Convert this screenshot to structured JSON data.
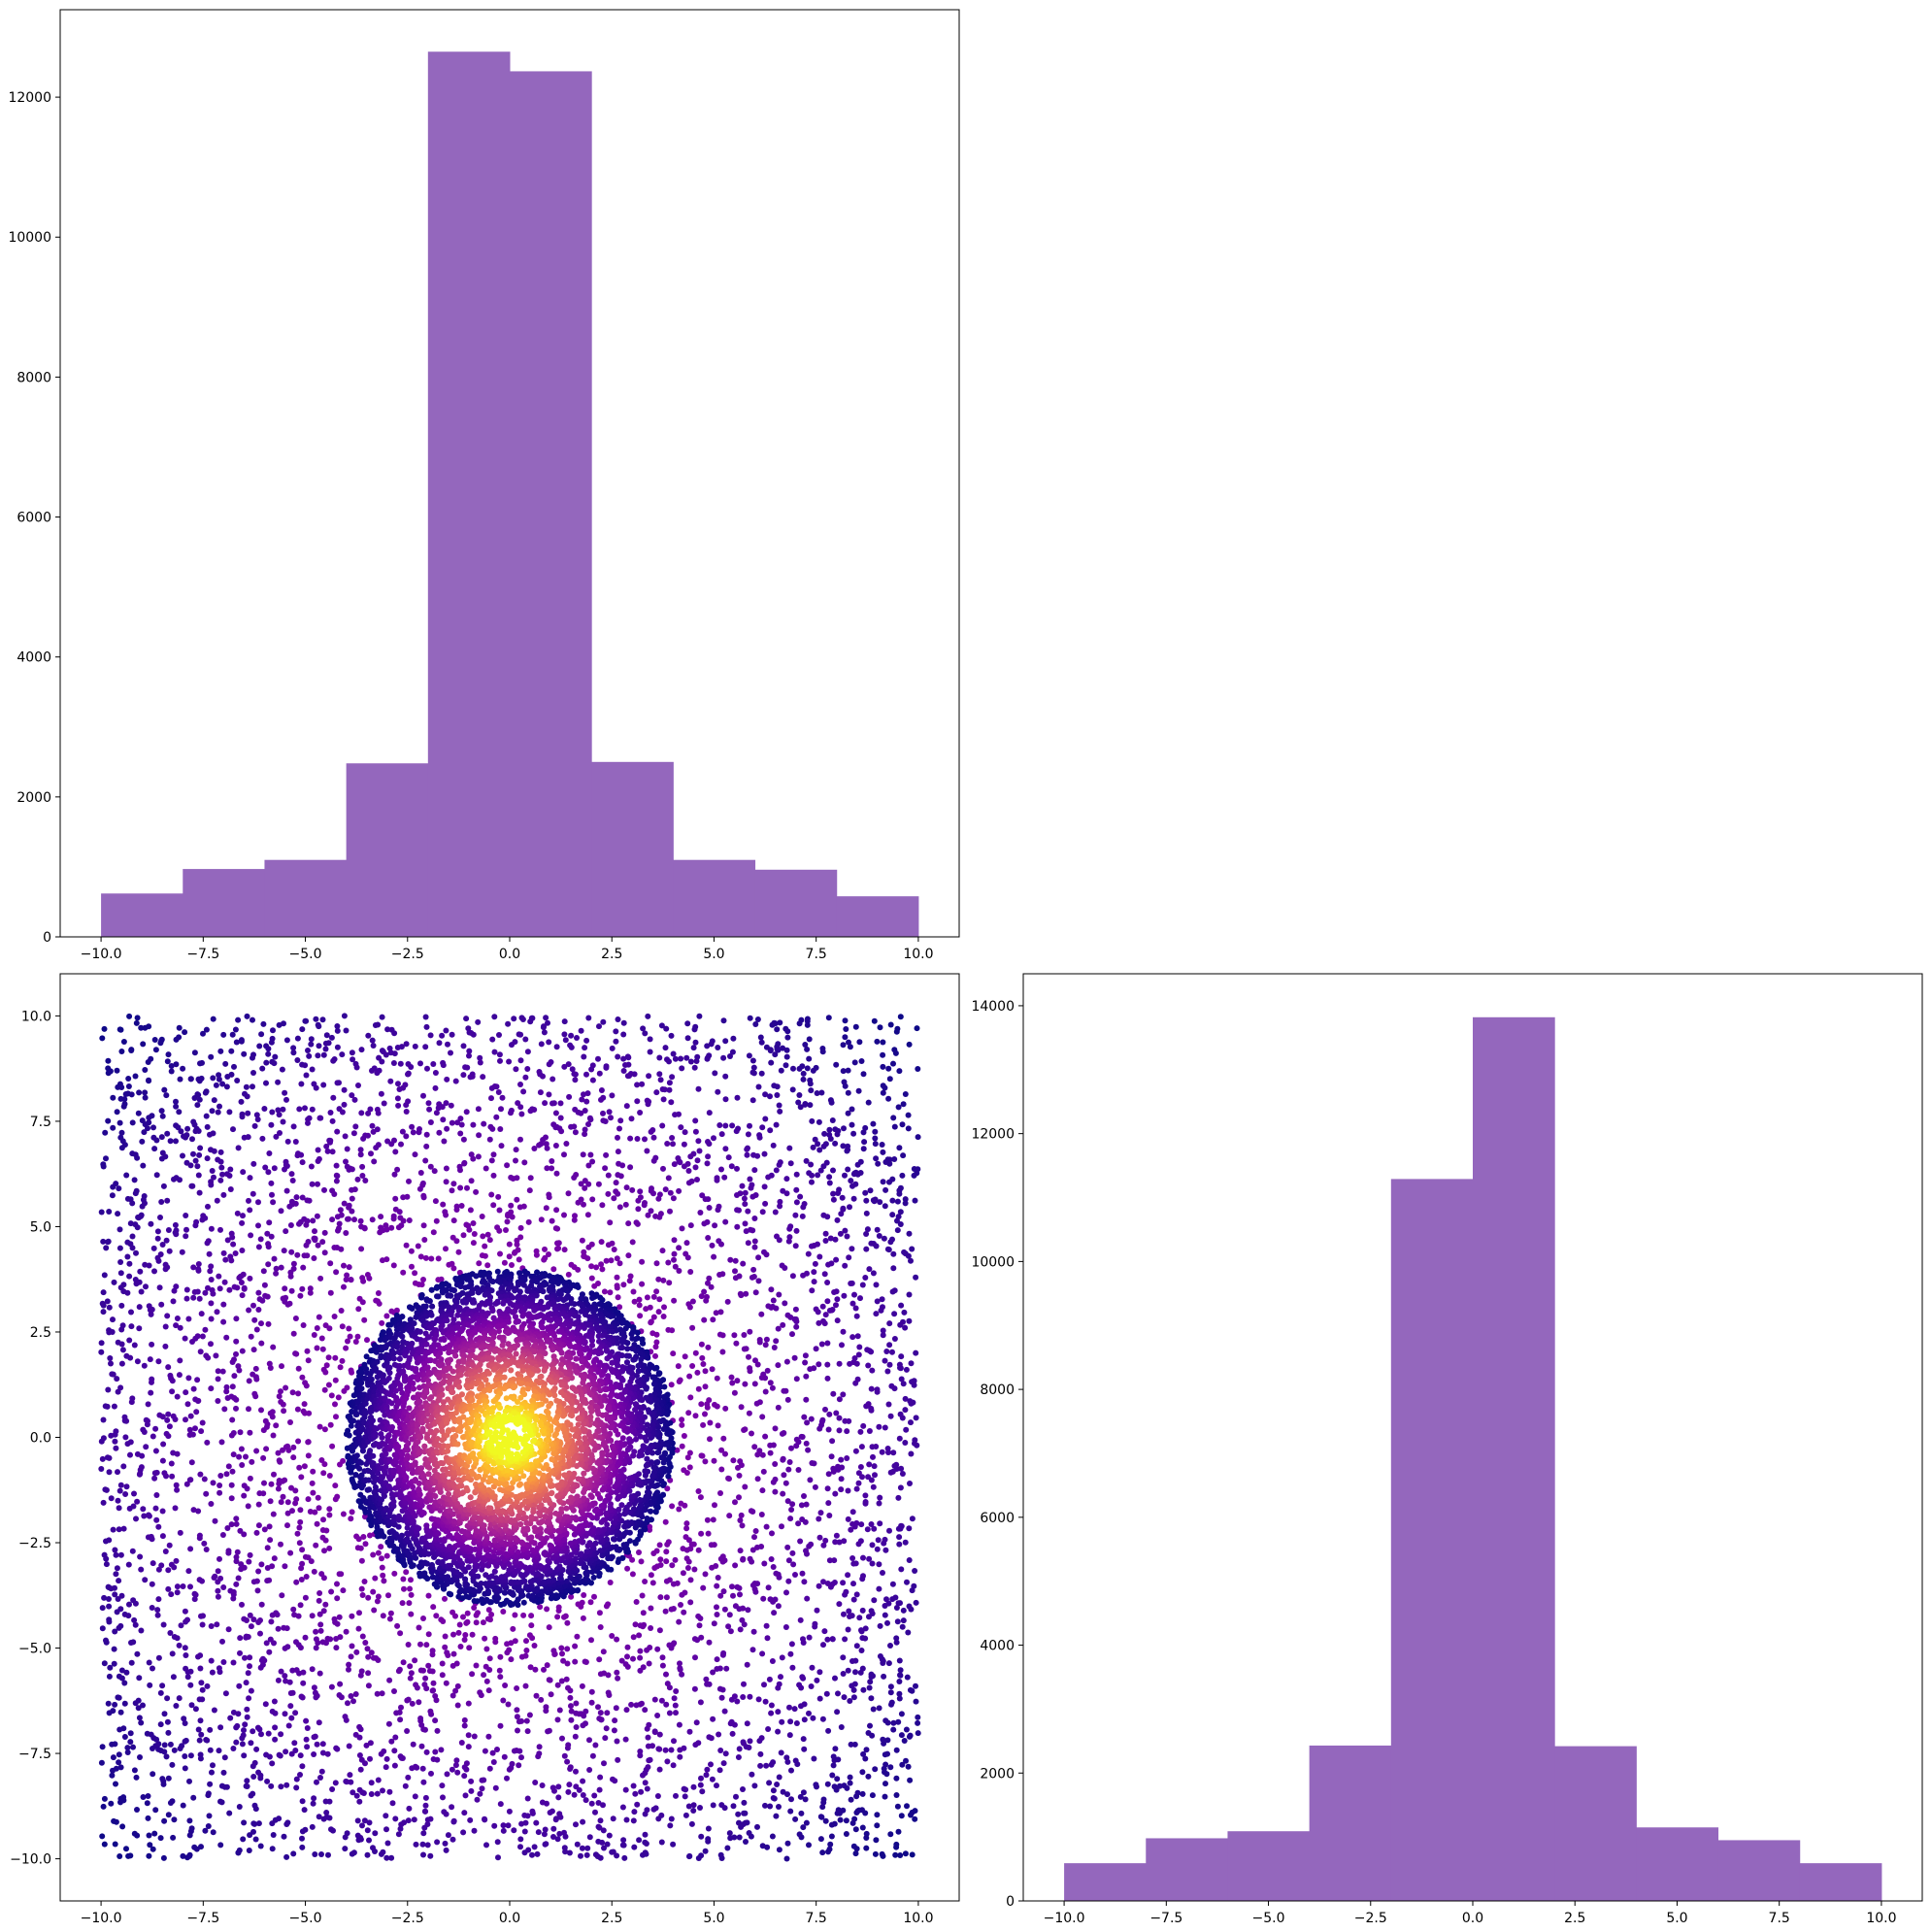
{
  "colors": {
    "bar": "#9467bd",
    "scatter_colormap": "plasma",
    "axes": "#000000",
    "background": "#ffffff"
  },
  "chart_data": [
    {
      "id": "hist-x",
      "type": "bar",
      "bin_edges": [
        -10,
        -8,
        -6,
        -4,
        -2,
        0,
        2,
        4,
        6,
        8,
        10
      ],
      "values": [
        620,
        970,
        1100,
        2480,
        12650,
        12370,
        2500,
        1100,
        960,
        580
      ],
      "xlim": [
        -11,
        11
      ],
      "ylim": [
        0,
        13250
      ],
      "xticks": [
        -10,
        -7.5,
        -5,
        -2.5,
        0,
        2.5,
        5,
        7.5,
        10
      ],
      "xtick_labels": [
        "−10.0",
        "−7.5",
        "−5.0",
        "−2.5",
        "0.0",
        "2.5",
        "5.0",
        "7.5",
        "10.0"
      ],
      "yticks": [
        0,
        2000,
        4000,
        6000,
        8000,
        10000,
        12000
      ],
      "ytick_labels": [
        "0",
        "2000",
        "4000",
        "6000",
        "8000",
        "10000",
        "12000"
      ],
      "title": "",
      "xlabel": "",
      "ylabel": "",
      "grid": false
    },
    {
      "id": "scatter-xy",
      "type": "scatter",
      "description_of_distribution": "dense isotropic cluster centred at (0, 0) with radius ≈ 4 over a uniform background on [-10, 10] × [-10, 10]; colour encodes density (plasma colormap, yellow at centre, dark indigo at edges)",
      "x_range": [
        -10,
        10
      ],
      "y_range": [
        -10,
        10
      ],
      "cluster_center": [
        0,
        0
      ],
      "cluster_radius": 4,
      "xlim": [
        -11,
        11
      ],
      "ylim": [
        -11,
        11
      ],
      "xticks": [
        -10,
        -7.5,
        -5,
        -2.5,
        0,
        2.5,
        5,
        7.5,
        10
      ],
      "xtick_labels": [
        "−10.0",
        "−7.5",
        "−5.0",
        "−2.5",
        "0.0",
        "2.5",
        "5.0",
        "7.5",
        "10.0"
      ],
      "yticks": [
        -10,
        -7.5,
        -5,
        -2.5,
        0,
        2.5,
        5,
        7.5,
        10
      ],
      "ytick_labels": [
        "−10.0",
        "−7.5",
        "−5.0",
        "−2.5",
        "0.0",
        "2.5",
        "5.0",
        "7.5",
        "10.0"
      ],
      "title": "",
      "xlabel": "",
      "ylabel": "",
      "grid": false
    },
    {
      "id": "hist-y",
      "type": "bar",
      "bin_edges": [
        -10,
        -8,
        -6,
        -4,
        -2,
        0,
        2,
        4,
        6,
        8,
        10
      ],
      "values": [
        590,
        980,
        1090,
        2430,
        11290,
        13820,
        2420,
        1150,
        950,
        590
      ],
      "xlim": [
        -11,
        11
      ],
      "ylim": [
        0,
        14500
      ],
      "xticks": [
        -10,
        -7.5,
        -5,
        -2.5,
        0,
        2.5,
        5,
        7.5,
        10
      ],
      "xtick_labels": [
        "−10.0",
        "−7.5",
        "−5.0",
        "−2.5",
        "0.0",
        "2.5",
        "5.0",
        "7.5",
        "10.0"
      ],
      "yticks": [
        0,
        2000,
        4000,
        6000,
        8000,
        10000,
        12000,
        14000
      ],
      "ytick_labels": [
        "0",
        "2000",
        "4000",
        "6000",
        "8000",
        "10000",
        "12000",
        "14000"
      ],
      "title": "",
      "xlabel": "",
      "ylabel": "",
      "grid": false
    }
  ]
}
